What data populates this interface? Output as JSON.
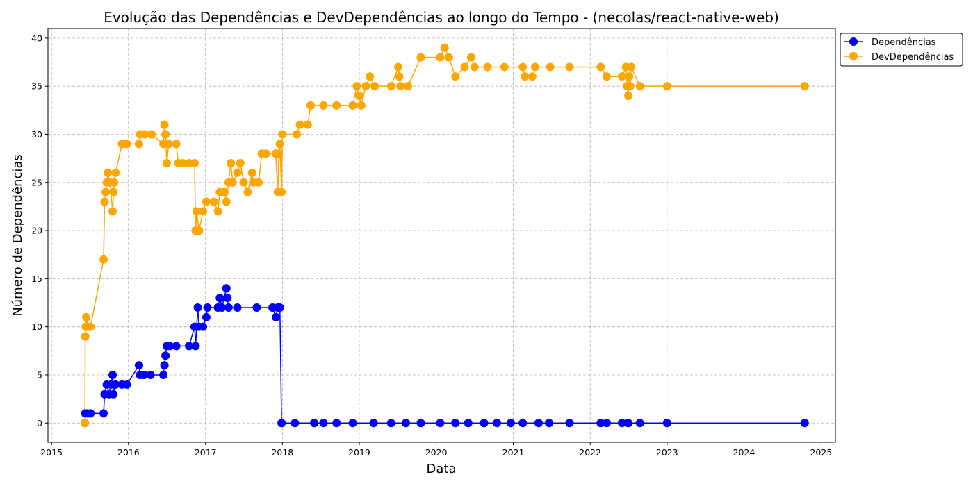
{
  "chart_data": {
    "type": "line",
    "title": "Evolução das Dependências e DevDependências ao longo do Tempo - (necolas/react-native-web)",
    "xlabel": "Data",
    "ylabel": "Número de Dependências",
    "xlim": [
      "2014-12-15",
      "2025-03-10"
    ],
    "ylim": [
      -2,
      41
    ],
    "x_ticks": [
      "2015",
      "2016",
      "2017",
      "2018",
      "2019",
      "2020",
      "2021",
      "2022",
      "2023",
      "2024",
      "2025"
    ],
    "y_ticks": [
      0,
      5,
      10,
      15,
      20,
      25,
      30,
      35,
      40
    ],
    "grid": true,
    "legend_position": "upper-right-outside",
    "series": [
      {
        "name": "Dependências",
        "color": "#0000ff",
        "points": [
          [
            "2015-06-08",
            0
          ],
          [
            "2015-06-10",
            1
          ],
          [
            "2015-06-20",
            1
          ],
          [
            "2015-07-05",
            1
          ],
          [
            "2015-09-05",
            1
          ],
          [
            "2015-09-10",
            3
          ],
          [
            "2015-09-20",
            4
          ],
          [
            "2015-10-01",
            3
          ],
          [
            "2015-10-10",
            4
          ],
          [
            "2015-10-18",
            5
          ],
          [
            "2015-10-22",
            3
          ],
          [
            "2015-11-01",
            4
          ],
          [
            "2015-12-01",
            4
          ],
          [
            "2015-12-25",
            4
          ],
          [
            "2016-02-20",
            6
          ],
          [
            "2016-02-25",
            5
          ],
          [
            "2016-03-15",
            5
          ],
          [
            "2016-04-15",
            5
          ],
          [
            "2016-06-15",
            5
          ],
          [
            "2016-06-20",
            6
          ],
          [
            "2016-06-25",
            7
          ],
          [
            "2016-07-01",
            8
          ],
          [
            "2016-07-15",
            8
          ],
          [
            "2016-08-15",
            8
          ],
          [
            "2016-10-15",
            8
          ],
          [
            "2016-11-10",
            10
          ],
          [
            "2016-11-15",
            8
          ],
          [
            "2016-11-25",
            12
          ],
          [
            "2016-12-01",
            10
          ],
          [
            "2016-12-20",
            10
          ],
          [
            "2017-01-05",
            11
          ],
          [
            "2017-01-10",
            12
          ],
          [
            "2017-03-01",
            12
          ],
          [
            "2017-03-10",
            13
          ],
          [
            "2017-03-20",
            12
          ],
          [
            "2017-04-10",
            14
          ],
          [
            "2017-04-15",
            13
          ],
          [
            "2017-04-20",
            12
          ],
          [
            "2017-06-01",
            12
          ],
          [
            "2017-09-01",
            12
          ],
          [
            "2017-11-15",
            12
          ],
          [
            "2017-12-01",
            11
          ],
          [
            "2017-12-10",
            12
          ],
          [
            "2017-12-20",
            12
          ],
          [
            "2017-12-28",
            0
          ],
          [
            "2018-03-01",
            0
          ],
          [
            "2018-06-01",
            0
          ],
          [
            "2018-07-15",
            0
          ],
          [
            "2018-09-15",
            0
          ],
          [
            "2018-12-01",
            0
          ],
          [
            "2019-03-10",
            0
          ],
          [
            "2019-06-01",
            0
          ],
          [
            "2019-08-10",
            0
          ],
          [
            "2019-10-20",
            0
          ],
          [
            "2020-01-20",
            0
          ],
          [
            "2020-04-01",
            0
          ],
          [
            "2020-06-01",
            0
          ],
          [
            "2020-08-15",
            0
          ],
          [
            "2020-10-15",
            0
          ],
          [
            "2020-12-20",
            0
          ],
          [
            "2021-02-15",
            0
          ],
          [
            "2021-05-01",
            0
          ],
          [
            "2021-06-20",
            0
          ],
          [
            "2021-09-25",
            0
          ],
          [
            "2022-02-20",
            0
          ],
          [
            "2022-03-20",
            0
          ],
          [
            "2022-06-01",
            0
          ],
          [
            "2022-07-01",
            0
          ],
          [
            "2022-08-25",
            0
          ],
          [
            "2023-01-01",
            0
          ],
          [
            "2024-10-15",
            0
          ]
        ]
      },
      {
        "name": "DevDependências",
        "color": "#ffa500",
        "points": [
          [
            "2015-06-08",
            0
          ],
          [
            "2015-06-10",
            9
          ],
          [
            "2015-06-12",
            10
          ],
          [
            "2015-06-15",
            11
          ],
          [
            "2015-06-22",
            10
          ],
          [
            "2015-07-05",
            10
          ],
          [
            "2015-09-05",
            17
          ],
          [
            "2015-09-10",
            23
          ],
          [
            "2015-09-15",
            24
          ],
          [
            "2015-09-20",
            25
          ],
          [
            "2015-09-25",
            26
          ],
          [
            "2015-10-05",
            25
          ],
          [
            "2015-10-18",
            22
          ],
          [
            "2015-10-22",
            24
          ],
          [
            "2015-10-25",
            25
          ],
          [
            "2015-11-01",
            26
          ],
          [
            "2015-12-01",
            29
          ],
          [
            "2015-12-25",
            29
          ],
          [
            "2016-02-20",
            29
          ],
          [
            "2016-02-25",
            30
          ],
          [
            "2016-03-20",
            30
          ],
          [
            "2016-04-20",
            30
          ],
          [
            "2016-06-15",
            29
          ],
          [
            "2016-06-20",
            31
          ],
          [
            "2016-06-25",
            30
          ],
          [
            "2016-07-01",
            27
          ],
          [
            "2016-07-10",
            29
          ],
          [
            "2016-08-15",
            29
          ],
          [
            "2016-08-25",
            27
          ],
          [
            "2016-09-15",
            27
          ],
          [
            "2016-10-15",
            27
          ],
          [
            "2016-11-10",
            27
          ],
          [
            "2016-11-15",
            20
          ],
          [
            "2016-11-20",
            22
          ],
          [
            "2016-12-01",
            20
          ],
          [
            "2016-12-20",
            22
          ],
          [
            "2017-01-05",
            23
          ],
          [
            "2017-02-10",
            23
          ],
          [
            "2017-03-01",
            22
          ],
          [
            "2017-03-10",
            24
          ],
          [
            "2017-04-01",
            24
          ],
          [
            "2017-04-10",
            23
          ],
          [
            "2017-04-20",
            25
          ],
          [
            "2017-05-01",
            27
          ],
          [
            "2017-05-10",
            25
          ],
          [
            "2017-06-01",
            26
          ],
          [
            "2017-06-15",
            27
          ],
          [
            "2017-07-01",
            25
          ],
          [
            "2017-07-20",
            24
          ],
          [
            "2017-08-10",
            26
          ],
          [
            "2017-08-15",
            25
          ],
          [
            "2017-09-10",
            25
          ],
          [
            "2017-09-25",
            28
          ],
          [
            "2017-10-15",
            28
          ],
          [
            "2017-11-30",
            28
          ],
          [
            "2017-12-10",
            24
          ],
          [
            "2017-12-15",
            28
          ],
          [
            "2017-12-20",
            29
          ],
          [
            "2017-12-28",
            24
          ],
          [
            "2018-01-01",
            30
          ],
          [
            "2018-03-10",
            30
          ],
          [
            "2018-03-25",
            31
          ],
          [
            "2018-05-01",
            31
          ],
          [
            "2018-05-15",
            33
          ],
          [
            "2018-07-15",
            33
          ],
          [
            "2018-09-15",
            33
          ],
          [
            "2018-12-01",
            33
          ],
          [
            "2018-12-20",
            35
          ],
          [
            "2019-01-01",
            34
          ],
          [
            "2019-01-10",
            33
          ],
          [
            "2019-02-01",
            35
          ],
          [
            "2019-02-20",
            36
          ],
          [
            "2019-03-15",
            35
          ],
          [
            "2019-06-01",
            35
          ],
          [
            "2019-07-05",
            37
          ],
          [
            "2019-07-10",
            36
          ],
          [
            "2019-07-15",
            35
          ],
          [
            "2019-08-20",
            35
          ],
          [
            "2019-10-20",
            38
          ],
          [
            "2020-01-20",
            38
          ],
          [
            "2020-02-10",
            39
          ],
          [
            "2020-03-01",
            38
          ],
          [
            "2020-04-01",
            36
          ],
          [
            "2020-05-15",
            37
          ],
          [
            "2020-06-15",
            38
          ],
          [
            "2020-07-01",
            37
          ],
          [
            "2020-09-01",
            37
          ],
          [
            "2020-11-20",
            37
          ],
          [
            "2021-02-15",
            37
          ],
          [
            "2021-02-25",
            36
          ],
          [
            "2021-04-01",
            36
          ],
          [
            "2021-04-15",
            37
          ],
          [
            "2021-06-25",
            37
          ],
          [
            "2021-09-25",
            37
          ],
          [
            "2022-02-20",
            37
          ],
          [
            "2022-03-20",
            36
          ],
          [
            "2022-06-01",
            36
          ],
          [
            "2022-06-20",
            37
          ],
          [
            "2022-06-25",
            35
          ],
          [
            "2022-07-01",
            34
          ],
          [
            "2022-07-05",
            36
          ],
          [
            "2022-07-10",
            35
          ],
          [
            "2022-07-15",
            37
          ],
          [
            "2022-08-25",
            35
          ],
          [
            "2023-01-01",
            35
          ],
          [
            "2024-10-15",
            35
          ]
        ]
      }
    ]
  }
}
